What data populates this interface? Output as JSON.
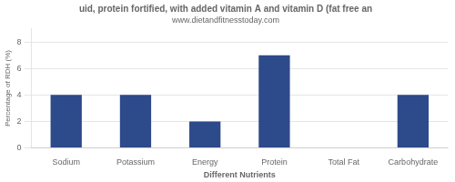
{
  "chart_data": {
    "type": "bar",
    "title": "uid, protein fortified, with added vitamin A and vitamin D (fat free an",
    "subtitle": "www.dietandfitnesstoday.com",
    "xlabel": "Different Nutrients",
    "ylabel": "Percentage of RDH (%)",
    "categories": [
      "Sodium",
      "Potassium",
      "Energy",
      "Protein",
      "Total Fat",
      "Carbohydrate"
    ],
    "values": [
      4,
      4,
      2,
      7,
      0,
      4
    ],
    "color": "#2d4a8a",
    "ylim": [
      0,
      9
    ],
    "yticks": [
      0,
      2,
      4,
      6,
      8
    ],
    "grid": true
  }
}
